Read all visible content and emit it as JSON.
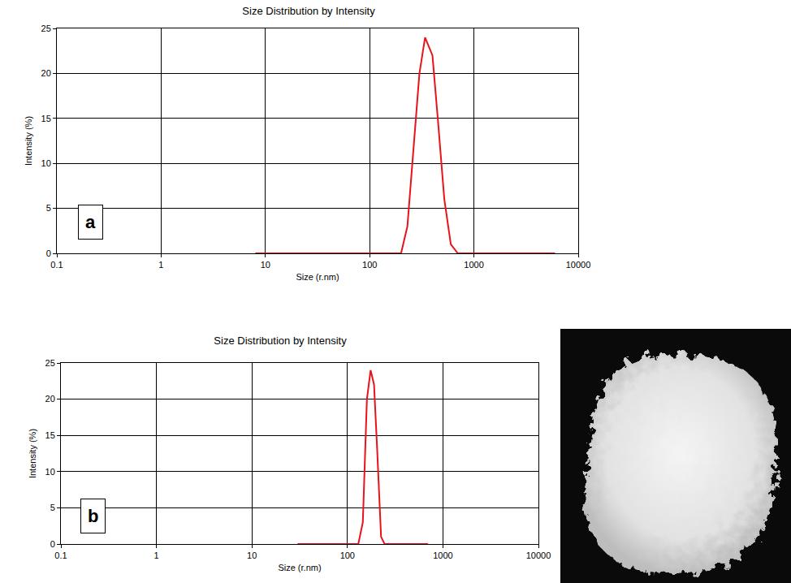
{
  "chart_data": [
    {
      "type": "line",
      "title": "Size Distribution by Intensity",
      "x_label": "Size (r.nm)",
      "y_label": "Intensity (%)",
      "annotations": [
        "a"
      ],
      "x": [
        8,
        20,
        50,
        100,
        200,
        230,
        260,
        300,
        340,
        400,
        450,
        520,
        600,
        700,
        1000,
        2000,
        6000
      ],
      "values": [
        0,
        0,
        0,
        0,
        0,
        3,
        11,
        20,
        24,
        22,
        15,
        6,
        1,
        0,
        0,
        0,
        0
      ],
      "color": "#e8141c",
      "log": "x",
      "grid": true,
      "xlim": [
        0.1,
        10000
      ],
      "xticks": [
        0.1,
        1,
        10,
        100,
        1000,
        10000
      ],
      "ylim": [
        0,
        25
      ],
      "yticks": [
        0,
        5,
        10,
        15,
        20,
        25
      ]
    },
    {
      "type": "line",
      "title": "Size Distribution by Intensity",
      "x_label": "Size (r.nm)",
      "y_label": "Intensity (%)",
      "annotations": [
        "b"
      ],
      "x": [
        30,
        80,
        130,
        145,
        160,
        175,
        190,
        205,
        225,
        245,
        400,
        700
      ],
      "values": [
        0,
        0,
        0,
        3,
        20,
        24,
        22,
        13,
        1,
        0,
        0,
        0
      ],
      "color": "#e8141c",
      "log": "x",
      "grid": true,
      "xlim": [
        0.1,
        10000
      ],
      "xticks": [
        0.1,
        1,
        10,
        100,
        1000,
        10000
      ],
      "ylim": [
        0,
        25
      ],
      "yticks": [
        0,
        5,
        10,
        15,
        20,
        25
      ]
    }
  ]
}
